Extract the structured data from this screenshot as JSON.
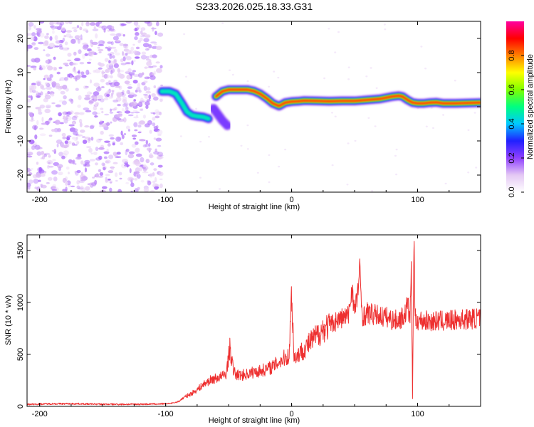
{
  "figure_title": "S233.2026.025.18.33.G31",
  "chart_data": [
    {
      "type": "heatmap",
      "name": "spectrogram",
      "title": "S233.2026.025.18.33.G31",
      "xlabel": "Height of straight line (km)",
      "ylabel": "Frequency (Hz)",
      "xlim": [
        -210,
        150
      ],
      "ylim": [
        -25,
        25
      ],
      "x_ticks": [
        -200,
        -100,
        0,
        100
      ],
      "x_tick_labels": [
        "-200",
        "-100",
        "0",
        "100"
      ],
      "y_ticks": [
        20,
        10,
        0,
        -10,
        -20
      ],
      "y_tick_labels": [
        "20",
        "10",
        "0",
        "-10",
        "-20"
      ],
      "noise_region": {
        "x_from": -210,
        "x_to": -103,
        "description": "scattered low-amplitude (purple) speckle across full frequency range"
      },
      "ridge_segments": [
        {
          "x": [
            -103,
            -97,
            -92,
            -87,
            -83,
            -79,
            -75,
            -70,
            -66
          ],
          "y": [
            4.5,
            4.5,
            3.8,
            1.0,
            -1.5,
            -2.5,
            -2.8,
            -3.0,
            -3.5
          ],
          "peak_amplitude": 0.5
        },
        {
          "x": [
            -62,
            -58,
            -55,
            -51
          ],
          "y": [
            -0.5,
            -2.5,
            -4.0,
            -5.5
          ],
          "peak_amplitude": 0.3
        },
        {
          "x": [
            -60,
            -55,
            -50,
            -45,
            -40,
            -35,
            -30,
            -25,
            -20,
            -15,
            -10,
            -5,
            0,
            5,
            10,
            20,
            30,
            40,
            50,
            60,
            70,
            80,
            85,
            88,
            92,
            96,
            100,
            105,
            110,
            115,
            120,
            130,
            140,
            150
          ],
          "y": [
            3.0,
            4.5,
            5.0,
            5.0,
            5.0,
            5.0,
            4.6,
            3.8,
            2.5,
            1.0,
            0.2,
            1.2,
            1.5,
            1.6,
            1.8,
            1.7,
            1.6,
            1.7,
            1.7,
            2.0,
            2.3,
            3.0,
            3.2,
            3.0,
            2.0,
            1.2,
            1.0,
            1.0,
            1.2,
            1.3,
            1.0,
            1.0,
            1.1,
            1.2
          ],
          "peak_amplitude": 0.97
        }
      ],
      "colorbar": {
        "label": "Normalized spectral amplitude",
        "range": [
          0,
          1
        ],
        "ticks": [
          0.0,
          0.2,
          0.4,
          0.6,
          0.8
        ],
        "tick_labels": [
          "0.0",
          "0.2",
          "0.4",
          "0.6",
          "0.8"
        ],
        "colors": [
          "#ffffff",
          "#e4c8f4",
          "#9040ff",
          "#2020ff",
          "#00c8ff",
          "#00ff80",
          "#80ff00",
          "#ffff00",
          "#ff8000",
          "#ff0000",
          "#ff00a0"
        ]
      }
    },
    {
      "type": "line",
      "name": "snr",
      "xlabel": "Height of straight line (km)",
      "ylabel": "SNR (10 * v/v)",
      "xlim": [
        -210,
        150
      ],
      "ylim": [
        0,
        1650
      ],
      "x_ticks": [
        -200,
        -100,
        0,
        100
      ],
      "x_tick_labels": [
        "-200",
        "-100",
        "0",
        "100"
      ],
      "y_ticks": [
        0,
        500,
        1000,
        1500
      ],
      "y_tick_labels": [
        "0",
        "500",
        "1000",
        "1500"
      ],
      "color": "#ee3030",
      "series": [
        {
          "name": "SNR",
          "x": [
            -210,
            -190,
            -170,
            -150,
            -130,
            -110,
            -100,
            -95,
            -90,
            -85,
            -80,
            -75,
            -70,
            -65,
            -60,
            -55,
            -52,
            -49,
            -46,
            -43,
            -40,
            -35,
            -30,
            -25,
            -20,
            -15,
            -10,
            -5,
            -2,
            0,
            2,
            5,
            10,
            15,
            20,
            25,
            30,
            35,
            40,
            45,
            48,
            50,
            52,
            54,
            56,
            58,
            60,
            65,
            70,
            75,
            80,
            85,
            88,
            90,
            92,
            93,
            94,
            95,
            96,
            97,
            98,
            100,
            110,
            120,
            130,
            140,
            150
          ],
          "y": [
            20,
            25,
            25,
            20,
            20,
            22,
            25,
            30,
            45,
            90,
            120,
            160,
            210,
            250,
            270,
            290,
            310,
            560,
            330,
            300,
            300,
            310,
            330,
            340,
            360,
            380,
            430,
            470,
            480,
            1100,
            460,
            500,
            550,
            620,
            680,
            740,
            780,
            820,
            850,
            870,
            1150,
            900,
            1050,
            1300,
            880,
            870,
            900,
            880,
            870,
            860,
            830,
            830,
            860,
            880,
            1000,
            900,
            860,
            1350,
            80,
            1650,
            840,
            830,
            820,
            820,
            830,
            840,
            850
          ]
        }
      ]
    }
  ]
}
